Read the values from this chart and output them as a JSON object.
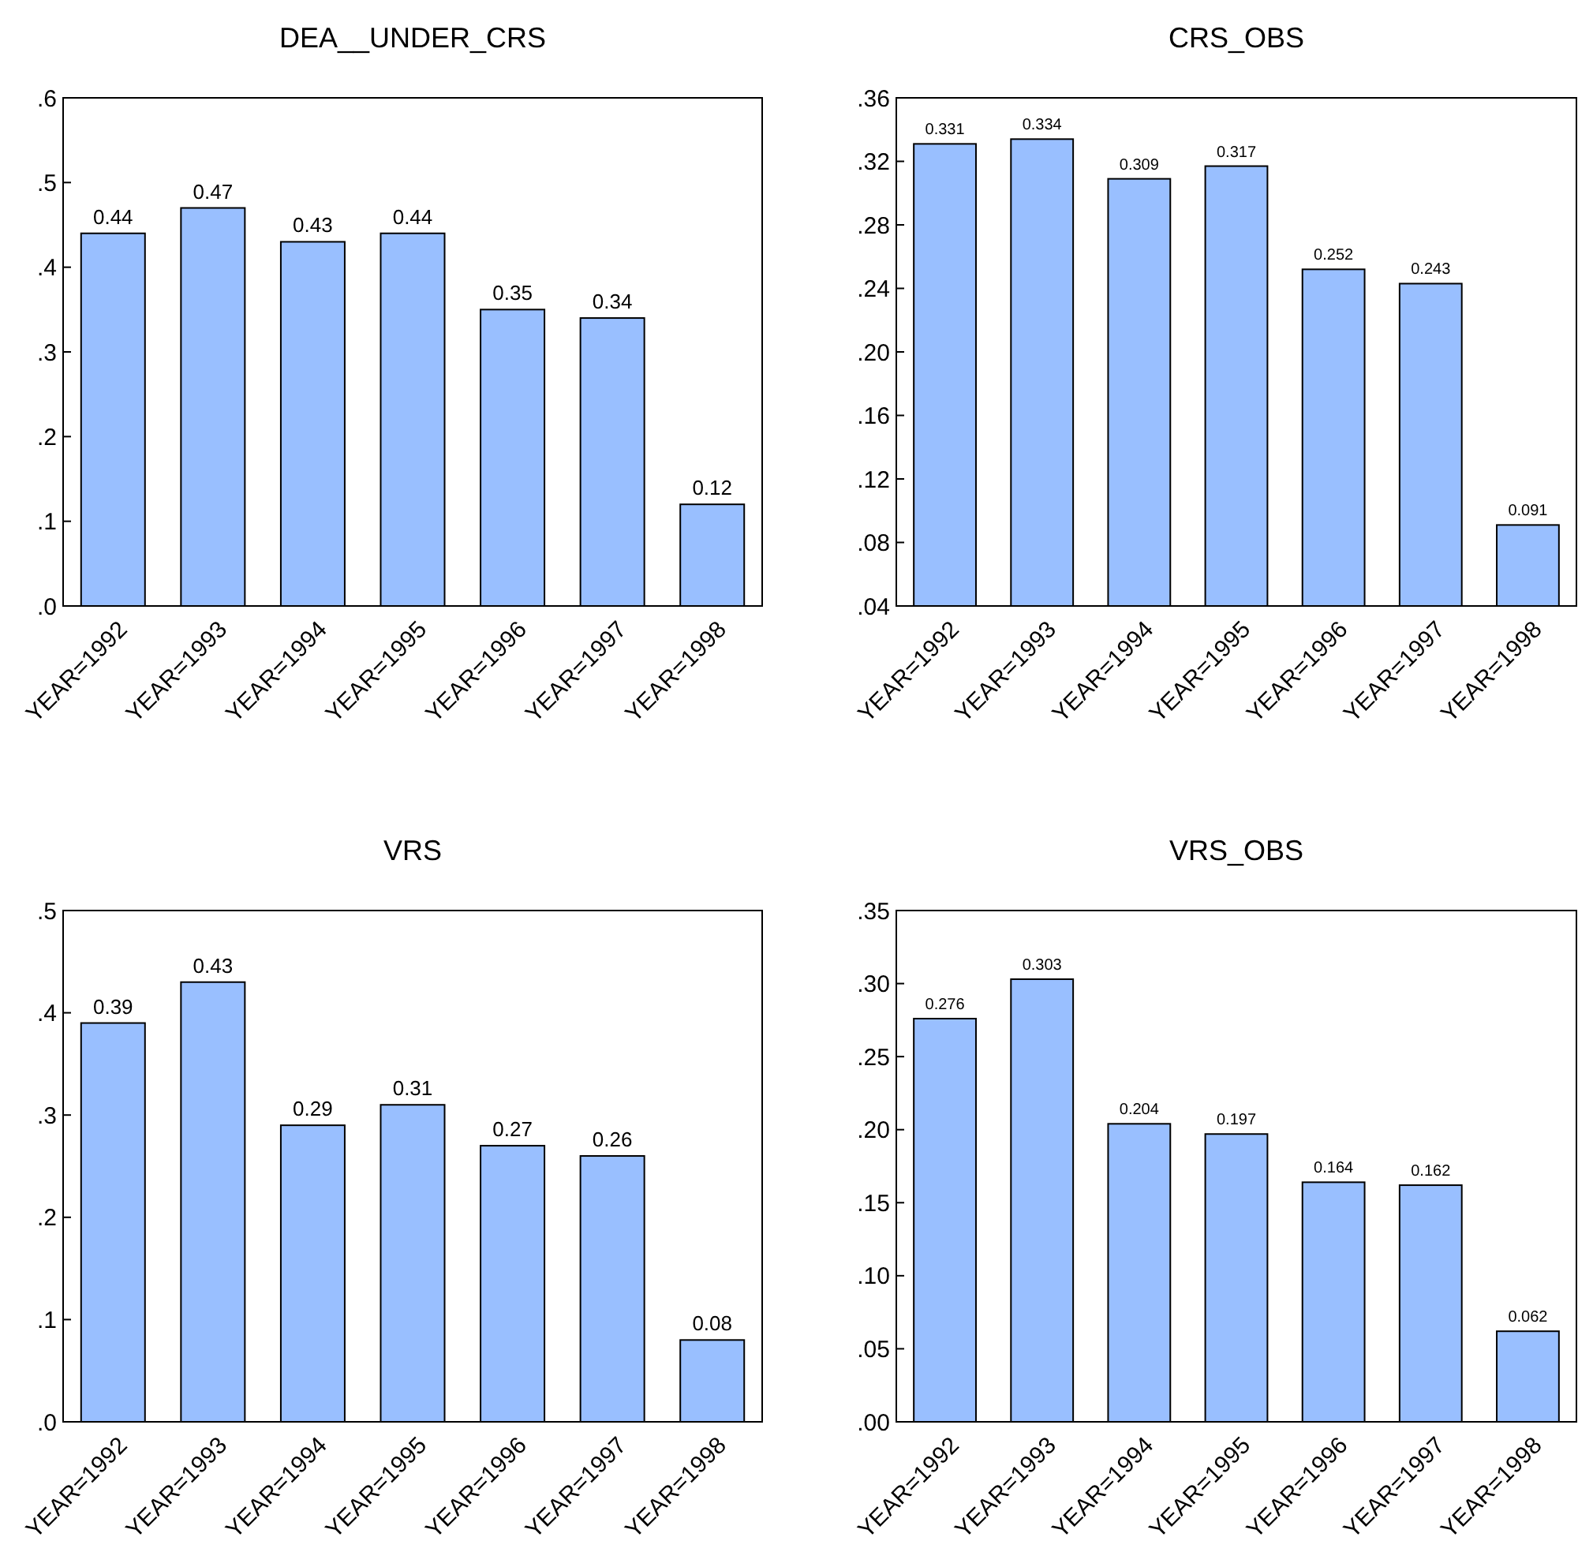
{
  "chart_data": [
    {
      "type": "bar",
      "title": "DEA__UNDER_CRS",
      "categories": [
        "YEAR=1992",
        "YEAR=1993",
        "YEAR=1994",
        "YEAR=1995",
        "YEAR=1996",
        "YEAR=1997",
        "YEAR=1998"
      ],
      "values": [
        0.44,
        0.47,
        0.43,
        0.44,
        0.35,
        0.34,
        0.12
      ],
      "color": "#99bfff",
      "data_labels": true,
      "ylim": [
        0,
        0.6
      ],
      "yticks": [
        {
          "value": 0,
          "label": ".0"
        },
        {
          "value": 0.1,
          "label": ".1"
        },
        {
          "value": 0.2,
          "label": ".2"
        },
        {
          "value": 0.3,
          "label": ".3"
        },
        {
          "value": 0.4,
          "label": ".4"
        },
        {
          "value": 0.5,
          "label": ".5"
        },
        {
          "value": 0.6,
          "label": ".6"
        }
      ],
      "grid": false
    },
    {
      "type": "bar",
      "title": "CRS_OBS",
      "categories": [
        "YEAR=1992",
        "YEAR=1993",
        "YEAR=1994",
        "YEAR=1995",
        "YEAR=1996",
        "YEAR=1997",
        "YEAR=1998"
      ],
      "values": [
        0.331,
        0.334,
        0.309,
        0.317,
        0.252,
        0.243,
        0.091
      ],
      "color": "#99bfff",
      "data_labels": true,
      "ylim": [
        0.04,
        0.36
      ],
      "yticks": [
        {
          "value": 0.04,
          "label": ".04"
        },
        {
          "value": 0.08,
          "label": ".08"
        },
        {
          "value": 0.12,
          "label": ".12"
        },
        {
          "value": 0.16,
          "label": ".16"
        },
        {
          "value": 0.2,
          "label": ".20"
        },
        {
          "value": 0.24,
          "label": ".24"
        },
        {
          "value": 0.28,
          "label": ".28"
        },
        {
          "value": 0.32,
          "label": ".32"
        },
        {
          "value": 0.36,
          "label": ".36"
        }
      ],
      "grid": false
    },
    {
      "type": "bar",
      "title": "VRS",
      "categories": [
        "YEAR=1992",
        "YEAR=1993",
        "YEAR=1994",
        "YEAR=1995",
        "YEAR=1996",
        "YEAR=1997",
        "YEAR=1998"
      ],
      "values": [
        0.39,
        0.43,
        0.29,
        0.31,
        0.27,
        0.26,
        0.08
      ],
      "color": "#99bfff",
      "data_labels": true,
      "ylim": [
        0,
        0.5
      ],
      "yticks": [
        {
          "value": 0,
          "label": ".0"
        },
        {
          "value": 0.1,
          "label": ".1"
        },
        {
          "value": 0.2,
          "label": ".2"
        },
        {
          "value": 0.3,
          "label": ".3"
        },
        {
          "value": 0.4,
          "label": ".4"
        },
        {
          "value": 0.5,
          "label": ".5"
        }
      ],
      "grid": false
    },
    {
      "type": "bar",
      "title": "VRS_OBS",
      "categories": [
        "YEAR=1992",
        "YEAR=1993",
        "YEAR=1994",
        "YEAR=1995",
        "YEAR=1996",
        "YEAR=1997",
        "YEAR=1998"
      ],
      "values": [
        0.276,
        0.303,
        0.204,
        0.197,
        0.164,
        0.162,
        0.062
      ],
      "color": "#99bfff",
      "data_labels": true,
      "ylim": [
        0,
        0.35
      ],
      "yticks": [
        {
          "value": 0,
          "label": ".00"
        },
        {
          "value": 0.05,
          "label": ".05"
        },
        {
          "value": 0.1,
          "label": ".10"
        },
        {
          "value": 0.15,
          "label": ".15"
        },
        {
          "value": 0.2,
          "label": ".20"
        },
        {
          "value": 0.25,
          "label": ".25"
        },
        {
          "value": 0.3,
          "label": ".30"
        },
        {
          "value": 0.35,
          "label": ".35"
        }
      ],
      "grid": false
    }
  ]
}
